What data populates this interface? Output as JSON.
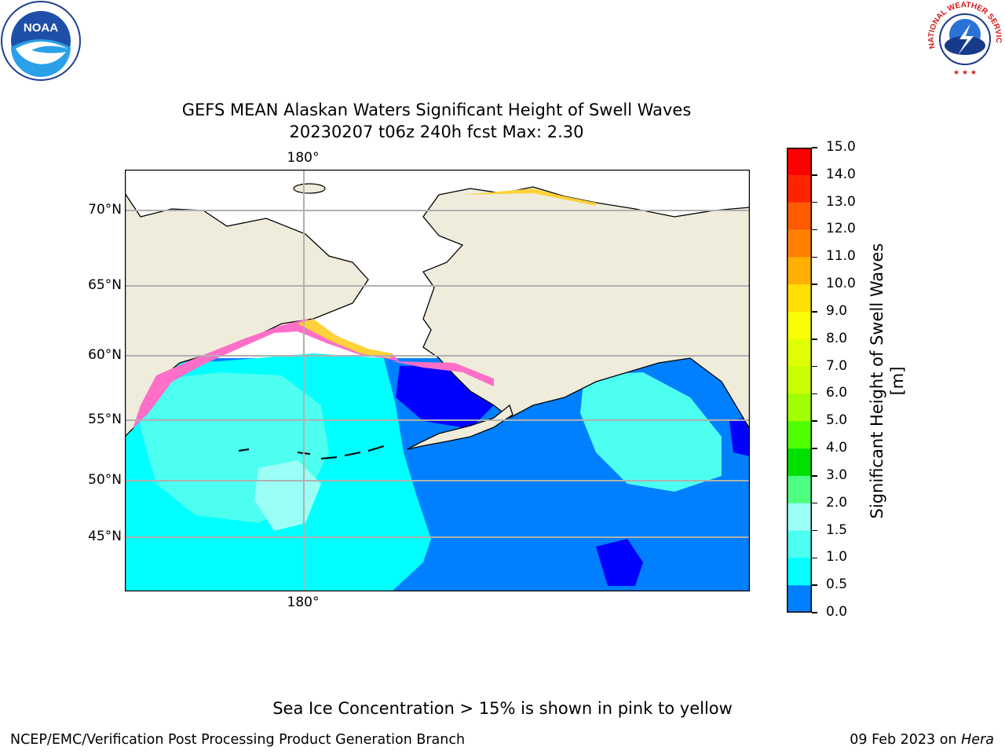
{
  "title_line1": "GEFS MEAN Alaskan Waters Significant Height of Swell Waves",
  "title_line2": "20230207 t06z 240h fcst   Max: 2.30",
  "logos": {
    "noaa_text": "NOAA",
    "nws_text": "NATIONAL WEATHER SERVICE"
  },
  "map": {
    "lat_labels": [
      "70°N",
      "65°N",
      "60°N",
      "55°N",
      "50°N",
      "45°N"
    ],
    "lon_label_top": "180°",
    "lon_label_bottom": "180°",
    "colors": {
      "land": "#efecdc",
      "coast": "#000000",
      "grid": "#b0b0b0",
      "ice_pink": "#ff6ec7",
      "ice_yellow": "#ffd23a",
      "swell_0": "#0000ff",
      "swell_05": "#0080ff",
      "swell_1": "#00ffff",
      "swell_15": "#4dfff0",
      "swell_2": "#9cfff5"
    }
  },
  "colorbar": {
    "label": "Significant Height of Swell Waves [m]",
    "ticks": [
      "15.0",
      "14.0",
      "13.0",
      "12.0",
      "11.0",
      "10.0",
      "9.0",
      "8.0",
      "7.0",
      "6.0",
      "5.0",
      "4.0",
      "3.0",
      "2.0",
      "1.5",
      "1.0",
      "0.5",
      "0.0"
    ],
    "colors": [
      "#ff0000",
      "#ff2400",
      "#ff5a00",
      "#ff8000",
      "#ffb000",
      "#ffe000",
      "#f8ff00",
      "#dfff00",
      "#c8ff00",
      "#a0ff00",
      "#50ff00",
      "#00e000",
      "#4cff80",
      "#9cfff5",
      "#4dfff0",
      "#00ffff",
      "#0080ff",
      "#0000ff"
    ]
  },
  "footer": {
    "note": "Sea Ice Concentration > 15% is shown in pink to yellow",
    "credit": "NCEP/EMC/Verification Post Processing Product Generation Branch",
    "date": "09 Feb 2023 on",
    "host": "Hera"
  }
}
